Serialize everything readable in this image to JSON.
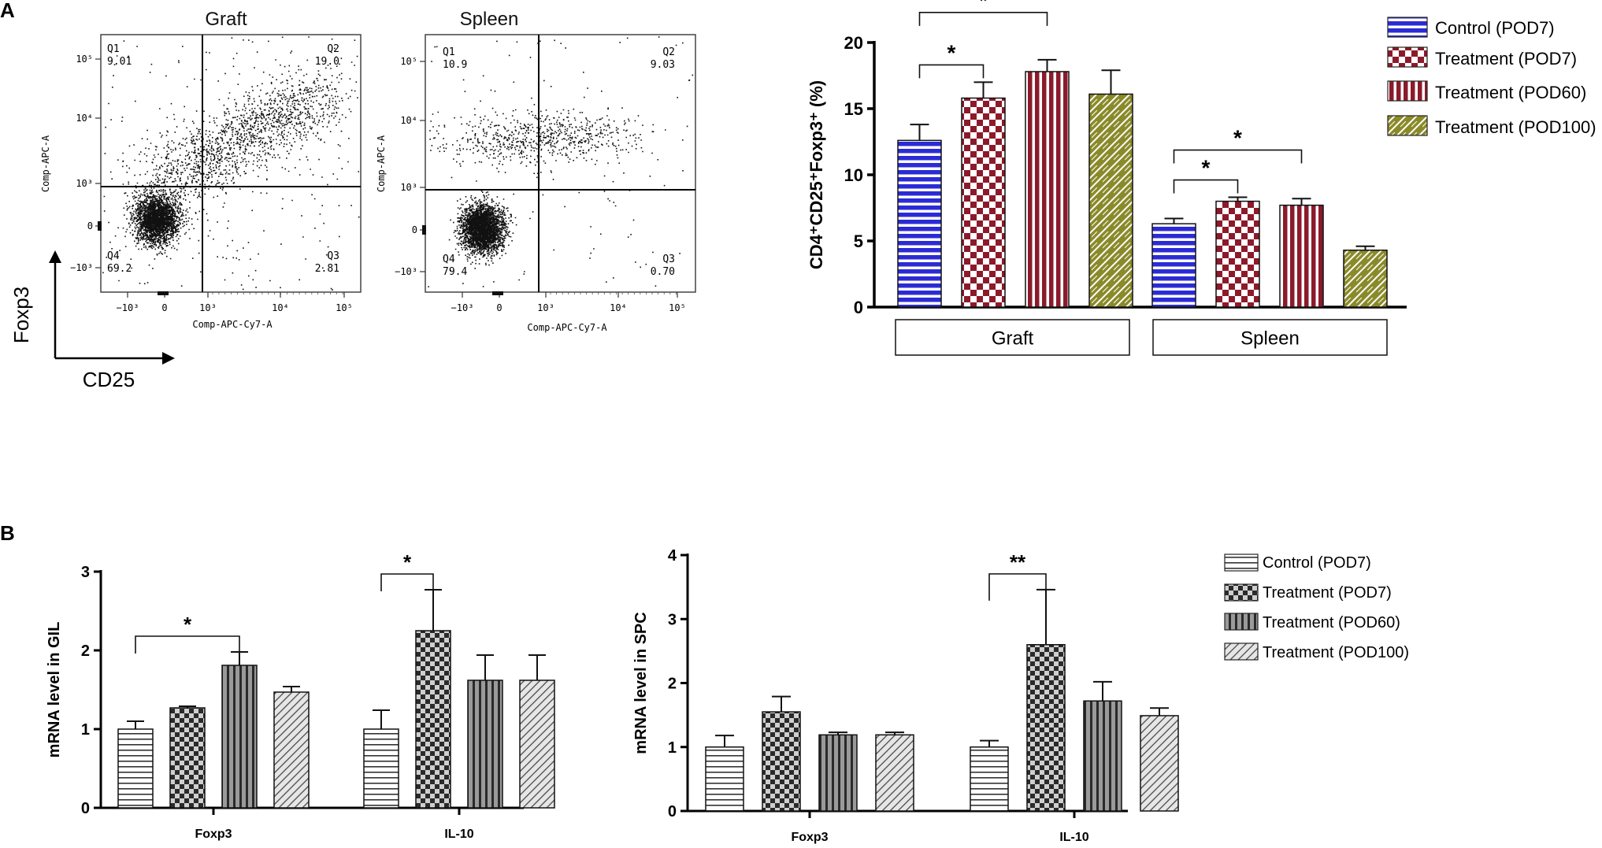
{
  "panel_labels": {
    "a": "A",
    "b": "B"
  },
  "flow": {
    "axis_foxp3": "Foxp3",
    "axis_cd25": "CD25",
    "x_ticks": [
      "−10³",
      "0",
      "10³",
      "10⁴",
      "10⁵"
    ],
    "y_ticks": [
      "10⁵",
      "10⁴",
      "10³",
      "0",
      "−10³"
    ],
    "plots": [
      {
        "title": "Graft",
        "ylabel": "Comp-APC-A",
        "xlabel": "Comp-APC-Cy7-A",
        "q1": {
          "label": "Q1",
          "value": "9.01"
        },
        "q2": {
          "label": "Q2",
          "value": "19.0"
        },
        "q3": {
          "label": "Q3",
          "value": "2.81"
        },
        "q4": {
          "label": "Q4",
          "value": "69.2"
        }
      },
      {
        "title": "Spleen",
        "ylabel": "Comp-APC-A",
        "xlabel": "Comp-APC-Cy7-A",
        "q1": {
          "label": "Q1",
          "value": "10.9"
        },
        "q2": {
          "label": "Q2",
          "value": "9.03"
        },
        "q3": {
          "label": "Q3",
          "value": "0.70"
        },
        "q4": {
          "label": "Q4",
          "value": "79.4"
        }
      }
    ]
  },
  "colors": {
    "control": "#2b2bd6",
    "red": "#8b1a2b",
    "olive": "#8a8a2a"
  },
  "chart_data": [
    {
      "type": "bar",
      "id": "treg",
      "title": "",
      "ylabel": "CD4⁺CD25⁺Foxp3⁺ (%)",
      "ylim": [
        0,
        20
      ],
      "yticks": [
        "0",
        "5",
        "10",
        "15",
        "20"
      ],
      "categories": [
        "Graft",
        "Spleen"
      ],
      "series": [
        {
          "name": "Control (POD7)",
          "values": [
            12.6,
            6.3
          ],
          "errors": [
            1.2,
            0.4
          ]
        },
        {
          "name": "Treatment (POD7)",
          "values": [
            15.8,
            8.0
          ],
          "errors": [
            1.2,
            0.3
          ]
        },
        {
          "name": "Treatment (POD60)",
          "values": [
            17.8,
            7.7
          ],
          "errors": [
            0.9,
            0.5
          ]
        },
        {
          "name": "Treatment (POD100)",
          "values": [
            16.1,
            4.3
          ],
          "errors": [
            1.8,
            0.3
          ]
        }
      ],
      "significance": [
        {
          "group": "Graft",
          "from": 0,
          "to": 1,
          "label": "*"
        },
        {
          "group": "Graft",
          "from": 0,
          "to": 2,
          "label": "*"
        },
        {
          "group": "Spleen",
          "from": 0,
          "to": 1,
          "label": "*"
        },
        {
          "group": "Spleen",
          "from": 0,
          "to": 2,
          "label": "*"
        }
      ]
    },
    {
      "type": "bar",
      "id": "gil",
      "title": "",
      "ylabel": "mRNA level in GIL",
      "ylim": [
        0,
        3
      ],
      "yticks": [
        "0",
        "1",
        "2",
        "3"
      ],
      "categories": [
        "Foxp3",
        "IL-10"
      ],
      "series": [
        {
          "name": "Control (POD7)",
          "values": [
            1.0,
            1.0
          ],
          "errors": [
            0.1,
            0.24
          ]
        },
        {
          "name": "Treatment (POD7)",
          "values": [
            1.27,
            2.25
          ],
          "errors": [
            0.02,
            0.52
          ]
        },
        {
          "name": "Treatment (POD60)",
          "values": [
            1.81,
            1.62
          ],
          "errors": [
            0.17,
            0.32
          ]
        },
        {
          "name": "Treatment (POD100)",
          "values": [
            1.47,
            1.62
          ],
          "errors": [
            0.07,
            0.32
          ]
        }
      ],
      "significance": [
        {
          "group": "Foxp3",
          "from": 0,
          "to": 2,
          "label": "*"
        },
        {
          "group": "IL-10",
          "from": 0,
          "to": 1,
          "label": "*"
        }
      ]
    },
    {
      "type": "bar",
      "id": "spc",
      "title": "",
      "ylabel": "mRNA level in SPC",
      "ylim": [
        0,
        4
      ],
      "yticks": [
        "0",
        "1",
        "2",
        "3",
        "4"
      ],
      "categories": [
        "Foxp3",
        "IL-10"
      ],
      "series": [
        {
          "name": "Control (POD7)",
          "values": [
            1.0,
            1.0
          ],
          "errors": [
            0.18,
            0.1
          ]
        },
        {
          "name": "Treatment (POD7)",
          "values": [
            1.55,
            2.6
          ],
          "errors": [
            0.24,
            0.86
          ]
        },
        {
          "name": "Treatment (POD60)",
          "values": [
            1.19,
            1.72
          ],
          "errors": [
            0.04,
            0.3
          ]
        },
        {
          "name": "Treatment (POD100)",
          "values": [
            1.19,
            1.49
          ],
          "errors": [
            0.04,
            0.12
          ]
        }
      ],
      "significance": [
        {
          "group": "IL-10",
          "from": 0,
          "to": 1,
          "label": "**"
        }
      ]
    }
  ],
  "legend_a": [
    "Control (POD7)",
    "Treatment (POD7)",
    "Treatment (POD60)",
    "Treatment (POD100)"
  ],
  "legend_b": [
    "Control (POD7)",
    "Treatment (POD7)",
    "Treatment (POD60)",
    "Treatment (POD100)"
  ]
}
